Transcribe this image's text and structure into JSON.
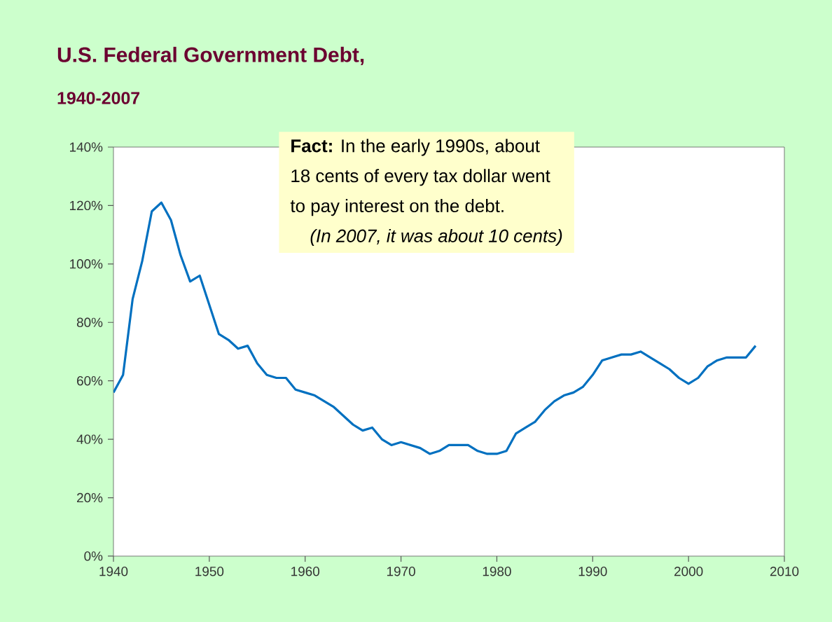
{
  "chart_data": {
    "type": "line",
    "title": "U.S. Federal Government Debt,",
    "subtitle": "1940-2007",
    "annotations": [
      "**Fact:** In the early 1990s, about",
      "18 cents of every tax dollar went",
      "to pay interest on the debt.",
      "(In 2007, it was about 10 cents)"
    ],
    "x": [
      1940,
      1941,
      1942,
      1943,
      1944,
      1945,
      1946,
      1947,
      1948,
      1949,
      1950,
      1951,
      1952,
      1953,
      1954,
      1955,
      1956,
      1957,
      1958,
      1959,
      1960,
      1961,
      1962,
      1963,
      1964,
      1965,
      1966,
      1967,
      1968,
      1969,
      1970,
      1971,
      1972,
      1973,
      1974,
      1975,
      1976,
      1977,
      1978,
      1979,
      1980,
      1981,
      1982,
      1983,
      1984,
      1985,
      1986,
      1987,
      1988,
      1989,
      1990,
      1991,
      1992,
      1993,
      1994,
      1995,
      1996,
      1997,
      1998,
      1999,
      2000,
      2001,
      2002,
      2003,
      2004,
      2005,
      2006,
      2007
    ],
    "values": [
      56,
      62,
      88,
      101,
      118,
      121,
      115,
      103,
      94,
      96,
      86,
      76,
      74,
      71,
      72,
      66,
      62,
      61,
      61,
      57,
      56,
      55,
      53,
      51,
      48,
      45,
      43,
      44,
      40,
      38,
      39,
      38,
      37,
      35,
      36,
      38,
      38,
      38,
      36,
      35,
      35,
      36,
      42,
      44,
      46,
      50,
      53,
      55,
      56,
      58,
      62,
      67,
      68,
      69,
      69,
      70,
      68,
      66,
      64,
      61,
      59,
      61,
      65,
      67,
      68,
      68,
      68,
      72
    ],
    "color": "#0070c0",
    "xlim": [
      1940,
      2010
    ],
    "xticks": [
      1940,
      1950,
      1960,
      1970,
      1980,
      1990,
      2000,
      2010
    ],
    "ylim": [
      0,
      140
    ],
    "yticks": [
      {
        "value": 0,
        "label": "0%"
      },
      {
        "value": 20,
        "label": "20%"
      },
      {
        "value": 40,
        "label": "40%"
      },
      {
        "value": 60,
        "label": "60%"
      },
      {
        "value": 80,
        "label": "80%"
      },
      {
        "value": 100,
        "label": "100%"
      },
      {
        "value": 120,
        "label": "120%"
      },
      {
        "value": 140,
        "label": "140%"
      }
    ],
    "grid": false,
    "marker": "none",
    "line_style": "solid"
  }
}
